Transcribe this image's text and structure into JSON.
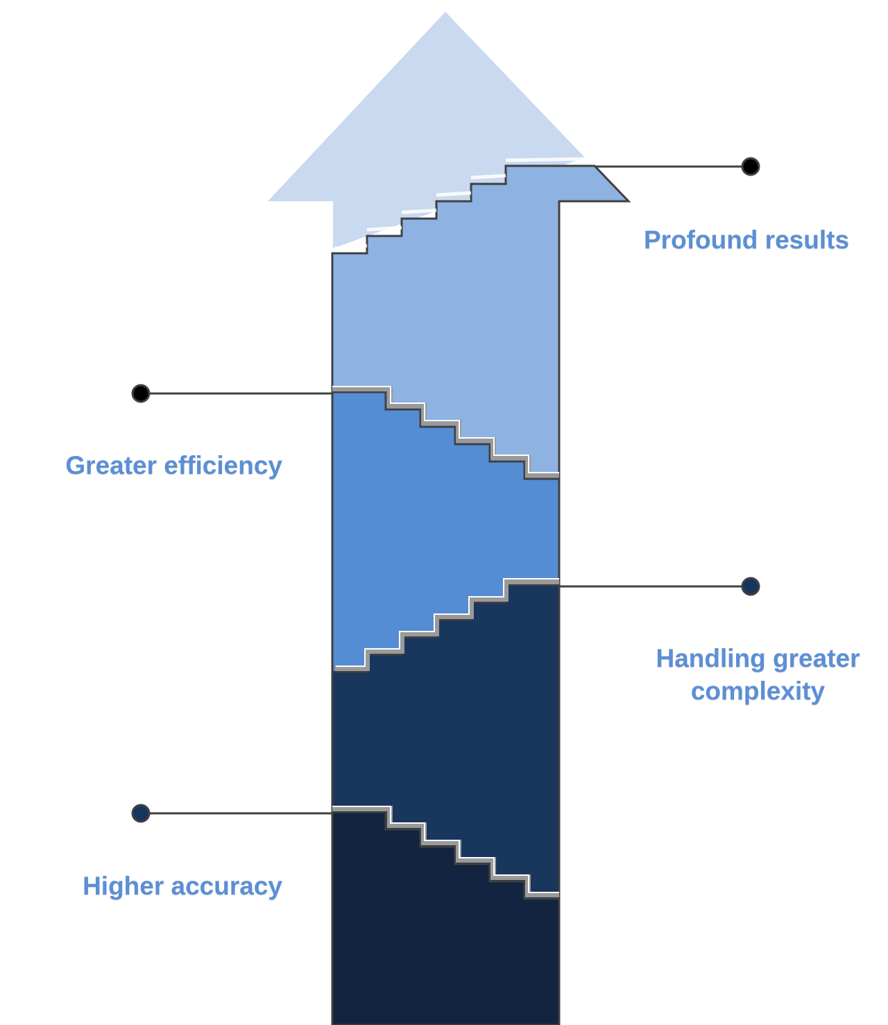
{
  "colors": {
    "label": "#5b8fd6",
    "arrow_tip": "#c8d9f0",
    "stage_1": "#132440",
    "stage_2": "#19365d",
    "stage_3": "#548dd4",
    "stage_4": "#8eb2e2",
    "outline": "#404040",
    "connector": "#404040",
    "dot_dark": "#000000",
    "dot_navy": "#17365d"
  },
  "stages": [
    {
      "label": "Higher accuracy",
      "color_key": "stage_1"
    },
    {
      "label": "Handling greater\ncomplexity",
      "color_key": "stage_2"
    },
    {
      "label": "Greater efficiency",
      "color_key": "stage_3"
    },
    {
      "label": "Profound results",
      "color_key": "stage_4"
    }
  ]
}
